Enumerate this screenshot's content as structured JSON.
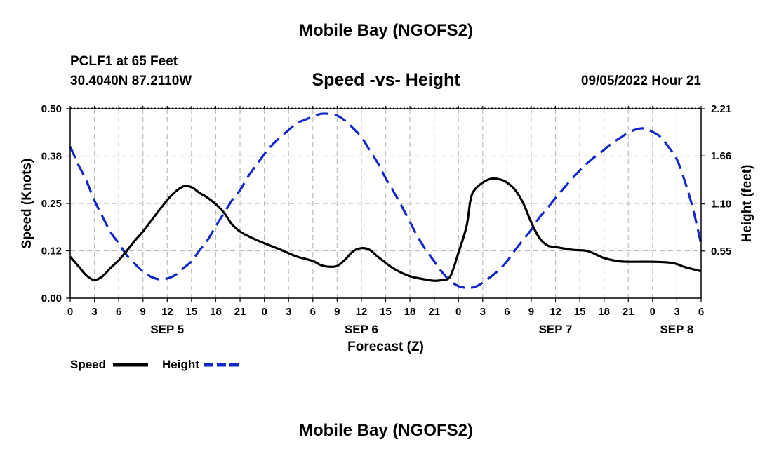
{
  "header": {
    "title": "Mobile Bay (NGOFS2)",
    "station": "PCLF1 at 65 Feet",
    "coords": "30.4040N  87.2110W",
    "subtitle": "Speed -vs- Height",
    "datetime": "09/05/2022 Hour 21"
  },
  "footer": {
    "title": "Mobile Bay (NGOFS2)"
  },
  "chart_data": {
    "type": "line",
    "xlabel": "Forecast (Z)",
    "ylabel": "Speed (Knots)",
    "ylabel_right": "Height (feet)",
    "x_range_hours": [
      0,
      78
    ],
    "x_tick_labels": [
      "0",
      "3",
      "6",
      "9",
      "12",
      "15",
      "18",
      "21",
      "0",
      "3",
      "6",
      "9",
      "12",
      "15",
      "18",
      "21",
      "0",
      "3",
      "6",
      "9",
      "12",
      "15",
      "18",
      "21",
      "0",
      "3",
      "6"
    ],
    "day_labels": [
      {
        "label": "SEP 5",
        "hour": 12
      },
      {
        "label": "SEP 6",
        "hour": 36
      },
      {
        "label": "SEP 7",
        "hour": 60
      },
      {
        "label": "SEP 8",
        "hour": 75
      }
    ],
    "ylim_left": [
      0,
      0.5
    ],
    "yticks_left": [
      "0.00",
      "0.12",
      "0.25",
      "0.38",
      "0.50"
    ],
    "ylim_right": [
      0,
      2.21
    ],
    "yticks_right": [
      {
        "label": "0.55",
        "value": 0.55
      },
      {
        "label": "1.10",
        "value": 1.1
      },
      {
        "label": "1.66",
        "value": 1.66
      },
      {
        "label": "2.21",
        "value": 2.21
      }
    ],
    "grid": true,
    "legend_placement": "bottom-left",
    "series": [
      {
        "name": "Speed",
        "axis": "left",
        "color": "#000000",
        "dash": "solid",
        "points": [
          [
            0,
            0.109
          ],
          [
            1,
            0.085
          ],
          [
            2,
            0.06
          ],
          [
            3,
            0.048
          ],
          [
            4,
            0.058
          ],
          [
            5,
            0.08
          ],
          [
            6,
            0.1
          ],
          [
            7,
            0.125
          ],
          [
            8,
            0.152
          ],
          [
            9,
            0.176
          ],
          [
            10,
            0.204
          ],
          [
            11,
            0.232
          ],
          [
            12,
            0.259
          ],
          [
            13,
            0.281
          ],
          [
            14,
            0.295
          ],
          [
            15,
            0.293
          ],
          [
            16,
            0.278
          ],
          [
            17,
            0.265
          ],
          [
            18,
            0.248
          ],
          [
            19,
            0.226
          ],
          [
            20,
            0.195
          ],
          [
            21,
            0.176
          ],
          [
            22,
            0.164
          ],
          [
            23,
            0.154
          ],
          [
            24,
            0.145
          ],
          [
            26,
            0.128
          ],
          [
            28,
            0.11
          ],
          [
            30,
            0.098
          ],
          [
            31,
            0.087
          ],
          [
            32,
            0.083
          ],
          [
            33,
            0.085
          ],
          [
            34,
            0.102
          ],
          [
            35,
            0.124
          ],
          [
            36,
            0.132
          ],
          [
            37,
            0.128
          ],
          [
            38,
            0.11
          ],
          [
            40,
            0.078
          ],
          [
            42,
            0.058
          ],
          [
            44,
            0.049
          ],
          [
            45,
            0.046
          ],
          [
            46,
            0.048
          ],
          [
            47,
            0.058
          ],
          [
            48,
            0.12
          ],
          [
            49,
            0.19
          ],
          [
            49.5,
            0.26
          ],
          [
            50,
            0.286
          ],
          [
            51,
            0.305
          ],
          [
            52,
            0.315
          ],
          [
            53,
            0.314
          ],
          [
            54,
            0.305
          ],
          [
            55,
            0.286
          ],
          [
            56,
            0.251
          ],
          [
            57,
            0.2
          ],
          [
            58,
            0.159
          ],
          [
            59,
            0.139
          ],
          [
            60,
            0.135
          ],
          [
            62,
            0.128
          ],
          [
            64,
            0.124
          ],
          [
            66,
            0.106
          ],
          [
            68,
            0.097
          ],
          [
            70,
            0.096
          ],
          [
            72,
            0.096
          ],
          [
            74,
            0.094
          ],
          [
            75,
            0.09
          ],
          [
            76,
            0.082
          ],
          [
            78,
            0.071
          ]
        ]
      },
      {
        "name": "Height",
        "axis": "right",
        "color": "#1028c8",
        "dash": "dashed",
        "points": [
          [
            0,
            1.77
          ],
          [
            1,
            1.56
          ],
          [
            2,
            1.37
          ],
          [
            3,
            1.14
          ],
          [
            4,
            0.95
          ],
          [
            5,
            0.77
          ],
          [
            6,
            0.64
          ],
          [
            7,
            0.5
          ],
          [
            8,
            0.4
          ],
          [
            9,
            0.31
          ],
          [
            10,
            0.25
          ],
          [
            11,
            0.22
          ],
          [
            12,
            0.23
          ],
          [
            13,
            0.27
          ],
          [
            14,
            0.35
          ],
          [
            15,
            0.43
          ],
          [
            16,
            0.56
          ],
          [
            17,
            0.68
          ],
          [
            18,
            0.84
          ],
          [
            19,
            0.99
          ],
          [
            20,
            1.14
          ],
          [
            21,
            1.26
          ],
          [
            22,
            1.42
          ],
          [
            23,
            1.55
          ],
          [
            24,
            1.68
          ],
          [
            25,
            1.79
          ],
          [
            26,
            1.88
          ],
          [
            27,
            1.96
          ],
          [
            28,
            2.04
          ],
          [
            29,
            2.08
          ],
          [
            30,
            2.12
          ],
          [
            31,
            2.15
          ],
          [
            32,
            2.15
          ],
          [
            33,
            2.13
          ],
          [
            34,
            2.07
          ],
          [
            35,
            1.98
          ],
          [
            36,
            1.88
          ],
          [
            37,
            1.73
          ],
          [
            38,
            1.58
          ],
          [
            39,
            1.4
          ],
          [
            40,
            1.24
          ],
          [
            41,
            1.07
          ],
          [
            42,
            0.89
          ],
          [
            43,
            0.71
          ],
          [
            44,
            0.56
          ],
          [
            45,
            0.43
          ],
          [
            46,
            0.3
          ],
          [
            47,
            0.2
          ],
          [
            48,
            0.14
          ],
          [
            49,
            0.12
          ],
          [
            50,
            0.13
          ],
          [
            51,
            0.18
          ],
          [
            52,
            0.25
          ],
          [
            53,
            0.33
          ],
          [
            54,
            0.43
          ],
          [
            55,
            0.56
          ],
          [
            56,
            0.68
          ],
          [
            57,
            0.8
          ],
          [
            58,
            0.94
          ],
          [
            59,
            1.05
          ],
          [
            60,
            1.17
          ],
          [
            61,
            1.28
          ],
          [
            62,
            1.39
          ],
          [
            63,
            1.49
          ],
          [
            64,
            1.58
          ],
          [
            65,
            1.66
          ],
          [
            66,
            1.73
          ],
          [
            67,
            1.81
          ],
          [
            68,
            1.87
          ],
          [
            69,
            1.93
          ],
          [
            70,
            1.97
          ],
          [
            71,
            1.98
          ],
          [
            72,
            1.94
          ],
          [
            73,
            1.88
          ],
          [
            74,
            1.76
          ],
          [
            75,
            1.62
          ],
          [
            76,
            1.36
          ],
          [
            77,
            1.04
          ],
          [
            78,
            0.63
          ]
        ]
      }
    ]
  }
}
